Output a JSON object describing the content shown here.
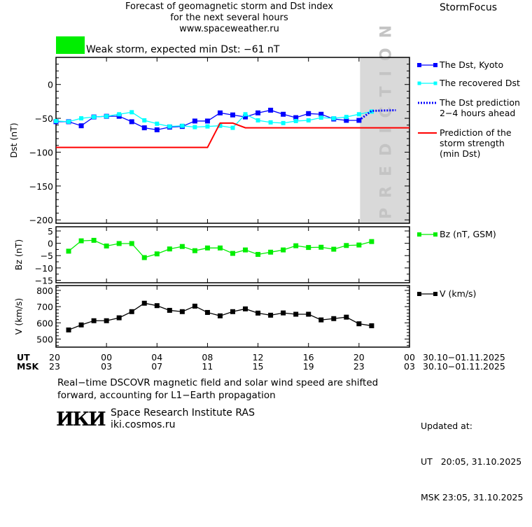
{
  "header": {
    "title_lines": [
      "Forecast of geomagnetic storm and Dst index",
      "for the next several hours",
      "www.spaceweather.ru"
    ],
    "brand": "StormFocus"
  },
  "status": {
    "text": "Weak storm, expected min Dst: −61 nT",
    "color": "#00ee00"
  },
  "x_axis": {
    "ut_label": "UT",
    "msk_label": "MSK",
    "ut_ticks": [
      "20",
      "00",
      "04",
      "08",
      "12",
      "16",
      "20",
      "00"
    ],
    "msk_ticks": [
      "23",
      "03",
      "07",
      "11",
      "15",
      "19",
      "23",
      "03"
    ],
    "ut_range": "30.10−01.11.2025",
    "msk_range": "30.10−01.11.2025",
    "start": "30.10 20:00",
    "end": "01.11 00:00"
  },
  "chart_data": [
    {
      "type": "line",
      "ylabel": "Dst (nT)",
      "ylim": [
        -205,
        40
      ],
      "yticks": [
        "0",
        "−50",
        "−100",
        "−150",
        "−200"
      ],
      "ytick_values": [
        0,
        -50,
        -100,
        -150,
        -200
      ],
      "prediction_region": {
        "label": "PREDICTION",
        "from": "31.10 20:05",
        "to": "01.11 00:00",
        "color": "#d9d9d9"
      },
      "series": [
        {
          "name": "The Dst, Kyoto",
          "color": "#0000ff",
          "style": "line-square",
          "start": "30.10 20:00",
          "step_hours": 1,
          "values": [
            -55,
            -55,
            -61,
            -48,
            -47,
            -47,
            -55,
            -64,
            -67,
            -63,
            -62,
            -54,
            -54,
            -42,
            -45,
            -48,
            -42,
            -38,
            -44,
            -49,
            -43,
            -44,
            -51,
            -53,
            -53
          ]
        },
        {
          "name": "The recovered Dst",
          "color": "#00ffff",
          "style": "line-small-square",
          "start": "30.10 20:00",
          "step_hours": 1,
          "values": [
            -54,
            -55,
            -50,
            -48,
            -47,
            -44,
            -41,
            -53,
            -58,
            -62,
            -61,
            -63,
            -62,
            -61,
            -64,
            -44,
            -53,
            -56,
            -57,
            -54,
            -53,
            -49,
            -50,
            -48,
            -44,
            -40
          ]
        },
        {
          "name": "The Dst prediction 2−4 hours ahead",
          "name_lines": [
            "The Dst prediction",
            "2−4 hours ahead"
          ],
          "color": "#0000ff",
          "style": "dotted",
          "points": [
            [
              "31.10 20:00",
              -53
            ],
            [
              "31.10 21:00",
              -39
            ],
            [
              "31.10 22:55",
              -38
            ]
          ]
        },
        {
          "name": "Prediction of the storm strength (min Dst)",
          "name_lines": [
            "Prediction of the",
            "storm strength",
            "(min Dst)"
          ],
          "color": "#ff0000",
          "style": "line",
          "points": [
            [
              "30.10 20:00",
              -93
            ],
            [
              "31.10 08:00",
              -93
            ],
            [
              "31.10 09:00",
              -57
            ],
            [
              "31.10 10:00",
              -57
            ],
            [
              "31.10 11:00",
              -64
            ],
            [
              "01.11 00:00",
              -64
            ]
          ]
        }
      ]
    },
    {
      "type": "line",
      "ylabel": "Bz (nT)",
      "ylim": [
        -16,
        6.7
      ],
      "yticks": [
        "5",
        "0",
        "−5",
        "−10",
        "−15"
      ],
      "ytick_values": [
        5,
        0,
        -5,
        -10,
        -15
      ],
      "series": [
        {
          "name": "Bz (nT, GSM)",
          "color": "#00ee00",
          "style": "line-square",
          "start": "30.10 21:00",
          "step_hours": 1,
          "values": [
            -3.2,
            1.0,
            1.2,
            -1.1,
            -0.1,
            -0.1,
            -5.8,
            -4.3,
            -2.3,
            -1.3,
            -3.0,
            -1.9,
            -1.9,
            -4.1,
            -2.7,
            -4.5,
            -3.6,
            -2.7,
            -1.0,
            -1.7,
            -1.6,
            -2.4,
            -0.9,
            -0.7,
            0.7
          ]
        }
      ]
    },
    {
      "type": "line",
      "ylabel": "V (km/s)",
      "ylim": [
        450,
        830
      ],
      "yticks": [
        "800",
        "700",
        "600",
        "500"
      ],
      "ytick_values": [
        800,
        700,
        600,
        500
      ],
      "series": [
        {
          "name": "V (km/s)",
          "color": "#000000",
          "style": "line-square",
          "start": "30.10 21:00",
          "step_hours": 1,
          "values": [
            556,
            587,
            613,
            613,
            631,
            669,
            721,
            706,
            677,
            669,
            703,
            664,
            643,
            669,
            686,
            660,
            647,
            661,
            653,
            653,
            618,
            626,
            635,
            594,
            582
          ]
        }
      ]
    }
  ],
  "footer": {
    "note_lines": [
      "Real−time DSCOVR magnetic field and solar wind speed are shifted",
      "forward, accounting for L1−Earth propagation"
    ],
    "logo_text": "ИКИ",
    "institute": "Space Research Institute RAS",
    "site": "iki.cosmos.ru",
    "updated_label": "Updated at:",
    "updated_ut": "UT   20:05, 31.10.2025",
    "updated_msk": "MSK 23:05, 31.10.2025"
  }
}
